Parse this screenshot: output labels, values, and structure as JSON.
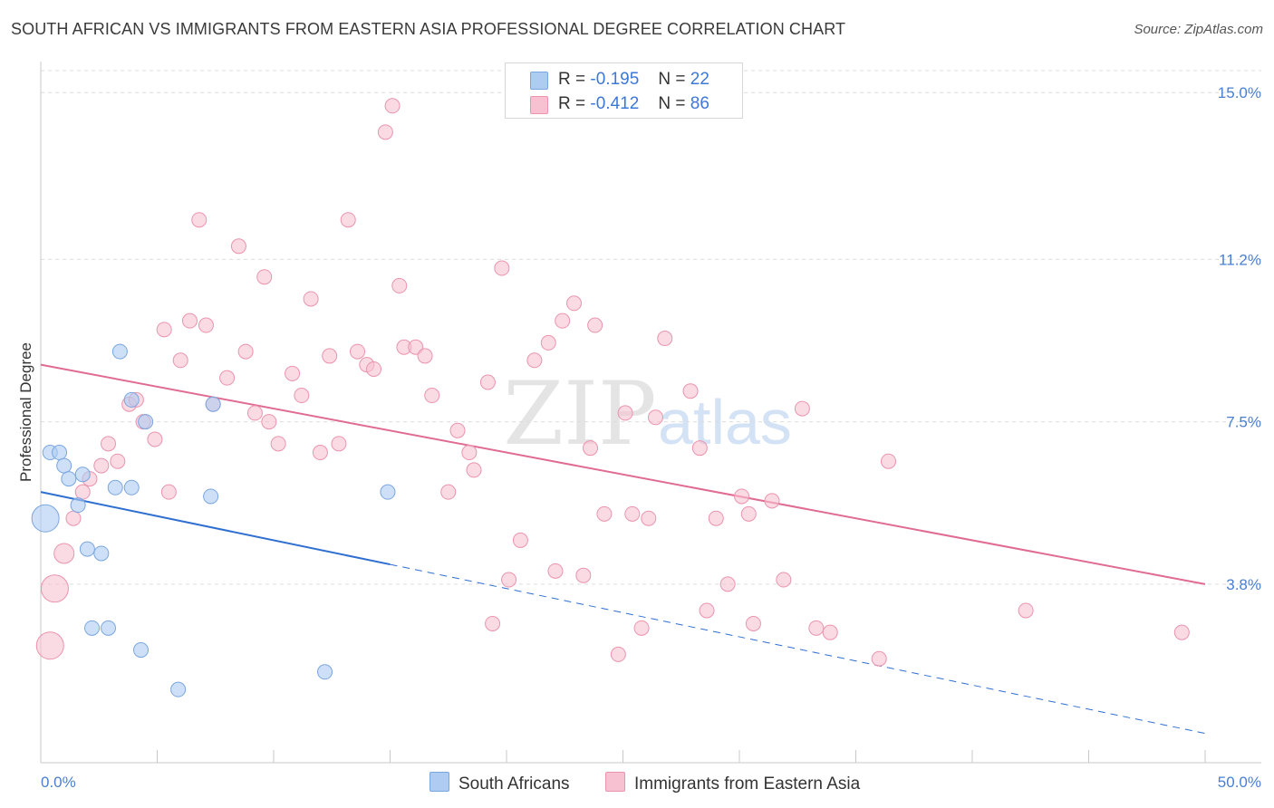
{
  "title": "SOUTH AFRICAN VS IMMIGRANTS FROM EASTERN ASIA PROFESSIONAL DEGREE CORRELATION CHART",
  "source": "Source: ZipAtlas.com",
  "watermark": {
    "part1": "ZIP",
    "part2": "atlas"
  },
  "legend": {
    "rows": [
      {
        "r_label": "R =",
        "r_value": "-0.195",
        "n_label": "N =",
        "n_value": "22",
        "color": "#aecbf2",
        "border": "#7aa6e0"
      },
      {
        "r_label": "R =",
        "r_value": "-0.412",
        "n_label": "N =",
        "n_value": "86",
        "color": "#f7c1d1",
        "border": "#ea94ae"
      }
    ]
  },
  "bottom_legend": {
    "items": [
      {
        "label": "South Africans",
        "color": "#aecbf2",
        "border": "#7aa6e0"
      },
      {
        "label": "Immigrants from Eastern Asia",
        "color": "#f7c1d1",
        "border": "#ea94ae"
      }
    ]
  },
  "chart_data": {
    "type": "scatter",
    "title": "SOUTH AFRICAN VS IMMIGRANTS FROM EASTERN ASIA PROFESSIONAL DEGREE CORRELATION CHART",
    "xlabel": "",
    "ylabel": "Professional Degree",
    "xlim": [
      0,
      50
    ],
    "ylim": [
      0,
      15.5
    ],
    "x_tick_labels": [
      "0.0%",
      "50.0%"
    ],
    "y_ticks": [
      3.8,
      7.5,
      11.2,
      15.0
    ],
    "y_tick_labels": [
      "3.8%",
      "7.5%",
      "11.2%",
      "15.0%"
    ],
    "grid": true,
    "legend_position": "top-center",
    "series": [
      {
        "name": "South Africans",
        "color": "#aecbf2",
        "stroke": "#7aa6e0",
        "line_color": "#2f6fd0",
        "trend": {
          "x0": 0,
          "y0": 5.9,
          "x1": 50,
          "y1": 0.4,
          "solid_until": 15
        },
        "points": [
          [
            0.2,
            5.3,
            3
          ],
          [
            0.4,
            6.8,
            1
          ],
          [
            0.8,
            6.8,
            1
          ],
          [
            1.0,
            6.5,
            1
          ],
          [
            1.2,
            6.2,
            1
          ],
          [
            1.6,
            5.6,
            1
          ],
          [
            1.8,
            6.3,
            1
          ],
          [
            2.0,
            4.6,
            1
          ],
          [
            2.2,
            2.8,
            1
          ],
          [
            2.6,
            4.5,
            1
          ],
          [
            2.9,
            2.8,
            1
          ],
          [
            3.2,
            6.0,
            1
          ],
          [
            3.4,
            9.1,
            1
          ],
          [
            3.9,
            6.0,
            1
          ],
          [
            3.9,
            8.0,
            1
          ],
          [
            4.3,
            2.3,
            1
          ],
          [
            4.5,
            7.5,
            1
          ],
          [
            5.9,
            1.4,
            1
          ],
          [
            7.3,
            5.8,
            1
          ],
          [
            7.4,
            7.9,
            1
          ],
          [
            12.2,
            1.8,
            1
          ],
          [
            14.9,
            5.9,
            1
          ]
        ]
      },
      {
        "name": "Immigrants from Eastern Asia",
        "color": "#f7c1d1",
        "stroke": "#ea94ae",
        "line_color": "#e06b93",
        "trend": {
          "x0": 0,
          "y0": 8.8,
          "x1": 50,
          "y1": 3.8
        },
        "points": [
          [
            0.4,
            2.4,
            3
          ],
          [
            0.6,
            3.7,
            3
          ],
          [
            1.0,
            4.5,
            2
          ],
          [
            1.4,
            5.3,
            1
          ],
          [
            1.8,
            5.9,
            1
          ],
          [
            2.1,
            6.2,
            1
          ],
          [
            2.6,
            6.5,
            1
          ],
          [
            2.9,
            7.0,
            1
          ],
          [
            3.3,
            6.6,
            1
          ],
          [
            3.8,
            7.9,
            1
          ],
          [
            4.1,
            8.0,
            1
          ],
          [
            4.4,
            7.5,
            1
          ],
          [
            4.9,
            7.1,
            1
          ],
          [
            5.3,
            9.6,
            1
          ],
          [
            5.5,
            5.9,
            1
          ],
          [
            6.0,
            8.9,
            1
          ],
          [
            6.4,
            9.8,
            1
          ],
          [
            6.8,
            12.1,
            1
          ],
          [
            7.1,
            9.7,
            1
          ],
          [
            7.4,
            7.9,
            1
          ],
          [
            8.0,
            8.5,
            1
          ],
          [
            8.5,
            11.5,
            1
          ],
          [
            8.8,
            9.1,
            1
          ],
          [
            9.2,
            7.7,
            1
          ],
          [
            9.6,
            10.8,
            1
          ],
          [
            9.8,
            7.5,
            1
          ],
          [
            10.2,
            7.0,
            1
          ],
          [
            10.8,
            8.6,
            1
          ],
          [
            11.2,
            8.1,
            1
          ],
          [
            11.6,
            10.3,
            1
          ],
          [
            12.0,
            6.8,
            1
          ],
          [
            12.4,
            9.0,
            1
          ],
          [
            12.8,
            7.0,
            1
          ],
          [
            13.2,
            12.1,
            1
          ],
          [
            13.6,
            9.1,
            1
          ],
          [
            14.0,
            8.8,
            1
          ],
          [
            14.3,
            8.7,
            1
          ],
          [
            14.8,
            14.1,
            1
          ],
          [
            15.1,
            14.7,
            1
          ],
          [
            15.4,
            10.6,
            1
          ],
          [
            15.6,
            9.2,
            1
          ],
          [
            16.1,
            9.2,
            1
          ],
          [
            16.5,
            9.0,
            1
          ],
          [
            16.8,
            8.1,
            1
          ],
          [
            17.5,
            5.9,
            1
          ],
          [
            17.9,
            7.3,
            1
          ],
          [
            18.4,
            6.8,
            1
          ],
          [
            18.6,
            6.4,
            1
          ],
          [
            19.2,
            8.4,
            1
          ],
          [
            19.4,
            2.9,
            1
          ],
          [
            19.8,
            11.0,
            1
          ],
          [
            20.1,
            3.9,
            1
          ],
          [
            20.6,
            4.8,
            1
          ],
          [
            21.2,
            8.9,
            1
          ],
          [
            21.8,
            9.3,
            1
          ],
          [
            22.1,
            4.1,
            1
          ],
          [
            22.4,
            9.8,
            1
          ],
          [
            22.9,
            10.2,
            1
          ],
          [
            23.3,
            4.0,
            1
          ],
          [
            23.6,
            6.9,
            1
          ],
          [
            23.8,
            9.7,
            1
          ],
          [
            24.2,
            5.4,
            1
          ],
          [
            24.8,
            2.2,
            1
          ],
          [
            25.1,
            7.7,
            1
          ],
          [
            25.4,
            5.4,
            1
          ],
          [
            25.8,
            2.8,
            1
          ],
          [
            26.1,
            5.3,
            1
          ],
          [
            26.4,
            7.6,
            1
          ],
          [
            26.8,
            9.4,
            1
          ],
          [
            27.9,
            8.2,
            1
          ],
          [
            28.3,
            6.9,
            1
          ],
          [
            28.6,
            3.2,
            1
          ],
          [
            29.0,
            5.3,
            1
          ],
          [
            29.5,
            3.8,
            1
          ],
          [
            30.1,
            5.8,
            1
          ],
          [
            30.4,
            5.4,
            1
          ],
          [
            30.6,
            2.9,
            1
          ],
          [
            31.4,
            5.7,
            1
          ],
          [
            31.9,
            3.9,
            1
          ],
          [
            32.7,
            7.8,
            1
          ],
          [
            33.3,
            2.8,
            1
          ],
          [
            33.9,
            2.7,
            1
          ],
          [
            36.0,
            2.1,
            1
          ],
          [
            36.4,
            6.6,
            1
          ],
          [
            42.3,
            3.2,
            1
          ],
          [
            49.0,
            2.7,
            1
          ]
        ]
      }
    ]
  }
}
